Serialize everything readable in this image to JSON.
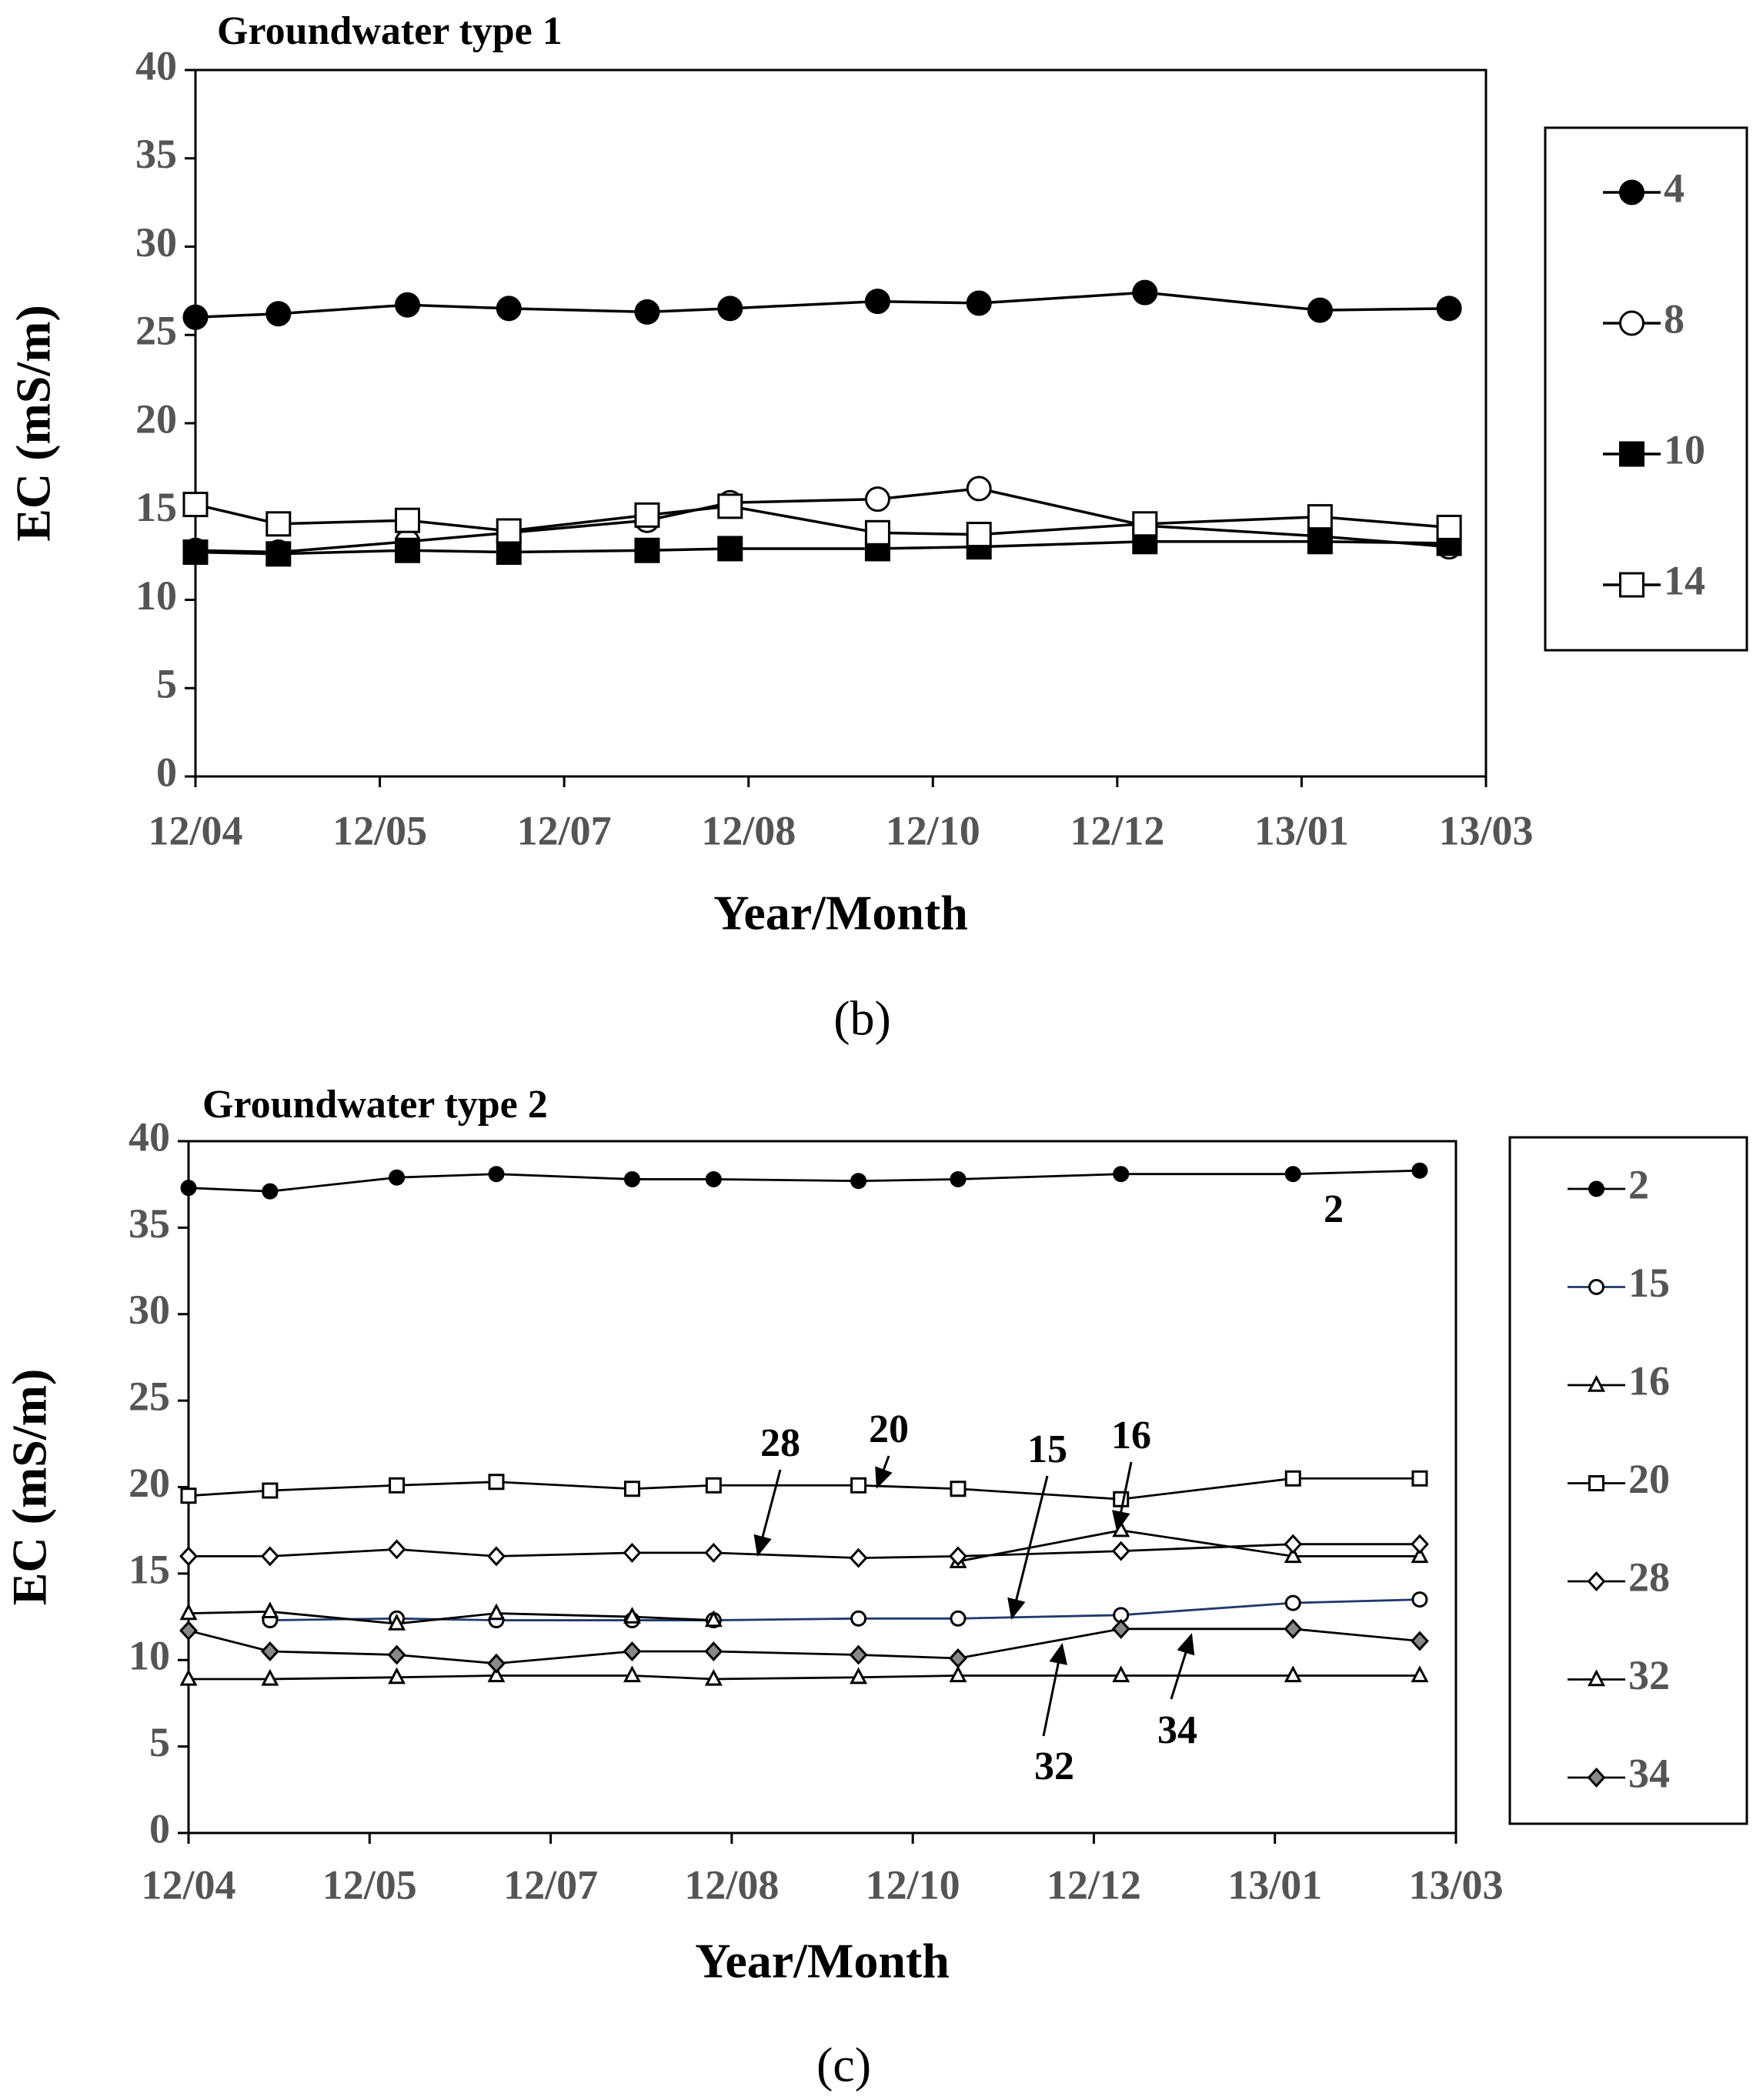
{
  "chart_data": [
    {
      "type": "line",
      "title": "Groundwater type 1",
      "label": "(b)",
      "x_label": "Year/Month",
      "y_label": "EC (mS/m)",
      "x": [
        0,
        0.45,
        1.15,
        1.7,
        2.45,
        2.9,
        3.7,
        4.25,
        5.15,
        6.1,
        6.8
      ],
      "xlim": [
        0,
        7
      ],
      "xticks": [
        {
          "value": 0,
          "label": "12/04"
        },
        {
          "value": 1,
          "label": "12/05"
        },
        {
          "value": 2,
          "label": "12/07"
        },
        {
          "value": 3,
          "label": "12/08"
        },
        {
          "value": 4,
          "label": "12/10"
        },
        {
          "value": 5,
          "label": "12/12"
        },
        {
          "value": 6,
          "label": "13/01"
        },
        {
          "value": 7,
          "label": "13/03"
        }
      ],
      "ylim": [
        0,
        40
      ],
      "yticks": [
        0,
        5,
        10,
        15,
        20,
        25,
        30,
        35,
        40
      ],
      "series": [
        {
          "name": "4",
          "color": "#000000",
          "marker": "circle",
          "fill": "#000000",
          "values": [
            26,
            26.2,
            26.7,
            26.5,
            26.3,
            26.5,
            26.9,
            26.8,
            27.4,
            26.4,
            26.5
          ]
        },
        {
          "name": "8",
          "color": "#000000",
          "marker": "circle",
          "fill": "#ffffff",
          "values": [
            12.8,
            12.7,
            13.3,
            13.8,
            14.5,
            15.5,
            15.7,
            16.3,
            14.2,
            13.6,
            13.0
          ]
        },
        {
          "name": "10",
          "color": "#000000",
          "marker": "square",
          "fill": "#000000",
          "values": [
            12.7,
            12.6,
            12.8,
            12.7,
            12.8,
            12.9,
            12.9,
            13.0,
            13.3,
            13.3,
            13.2
          ]
        },
        {
          "name": "14",
          "color": "#000000",
          "marker": "square",
          "fill": "#ffffff",
          "values": [
            15.4,
            14.3,
            14.5,
            13.9,
            14.8,
            15.3,
            13.8,
            13.7,
            14.3,
            14.7,
            14.1
          ]
        }
      ]
    },
    {
      "type": "line",
      "title": "Groundwater type 2",
      "label": "(c)",
      "x_label": "Year/Month",
      "y_label": "EC (mS/m)",
      "x": [
        0,
        0.45,
        1.15,
        1.7,
        2.45,
        2.9,
        3.7,
        4.25,
        5.15,
        6.1,
        6.8
      ],
      "xlim": [
        0,
        7
      ],
      "xticks": [
        {
          "value": 0,
          "label": "12/04"
        },
        {
          "value": 1,
          "label": "12/05"
        },
        {
          "value": 2,
          "label": "12/07"
        },
        {
          "value": 3,
          "label": "12/08"
        },
        {
          "value": 4,
          "label": "12/10"
        },
        {
          "value": 5,
          "label": "12/12"
        },
        {
          "value": 6,
          "label": "13/01"
        },
        {
          "value": 7,
          "label": "13/03"
        }
      ],
      "ylim": [
        0,
        40
      ],
      "yticks": [
        0,
        5,
        10,
        15,
        20,
        25,
        30,
        35,
        40
      ],
      "series": [
        {
          "name": "2",
          "color": "#000000",
          "marker": "circle",
          "fill": "#000000",
          "values": [
            37.3,
            37.1,
            37.9,
            38.1,
            37.8,
            37.8,
            37.7,
            37.8,
            38.1,
            38.1,
            38.3
          ]
        },
        {
          "name": "15",
          "color": "#1f3a6e",
          "marker": "circle",
          "fill": "#ffffff",
          "values": [
            null,
            12.3,
            12.4,
            12.3,
            12.3,
            12.3,
            12.4,
            12.4,
            12.6,
            13.3,
            13.5
          ]
        },
        {
          "name": "16",
          "color": "#000000",
          "marker": "triangle",
          "fill": "#ffffff",
          "values": [
            12.7,
            12.8,
            12.1,
            12.7,
            12.5,
            12.3,
            null,
            15.7,
            17.5,
            16.0,
            16.0
          ]
        },
        {
          "name": "20",
          "color": "#000000",
          "marker": "square",
          "fill": "#ffffff",
          "values": [
            19.5,
            19.8,
            20.1,
            20.3,
            19.9,
            20.1,
            20.1,
            19.9,
            19.3,
            20.5,
            20.5
          ]
        },
        {
          "name": "28",
          "color": "#000000",
          "marker": "diamond",
          "fill": "#ffffff",
          "values": [
            16.0,
            16.0,
            16.4,
            16.0,
            16.2,
            16.2,
            15.9,
            16.0,
            16.3,
            16.7,
            16.7
          ]
        },
        {
          "name": "32",
          "color": "#000000",
          "marker": "triangle",
          "fill": "#ffffff",
          "values": [
            8.9,
            8.9,
            9.0,
            9.1,
            9.1,
            8.9,
            9.0,
            9.1,
            9.1,
            9.1,
            9.1
          ]
        },
        {
          "name": "34",
          "color": "#000000",
          "marker": "diamond",
          "fill": "#888888",
          "values": [
            11.7,
            10.5,
            10.3,
            9.8,
            10.5,
            10.5,
            10.3,
            10.1,
            11.8,
            11.8,
            11.1
          ]
        }
      ],
      "annotations": [
        {
          "text": "2"
        },
        {
          "text": "28"
        },
        {
          "text": "20"
        },
        {
          "text": "15"
        },
        {
          "text": "16"
        },
        {
          "text": "32"
        },
        {
          "text": "34"
        }
      ]
    }
  ]
}
